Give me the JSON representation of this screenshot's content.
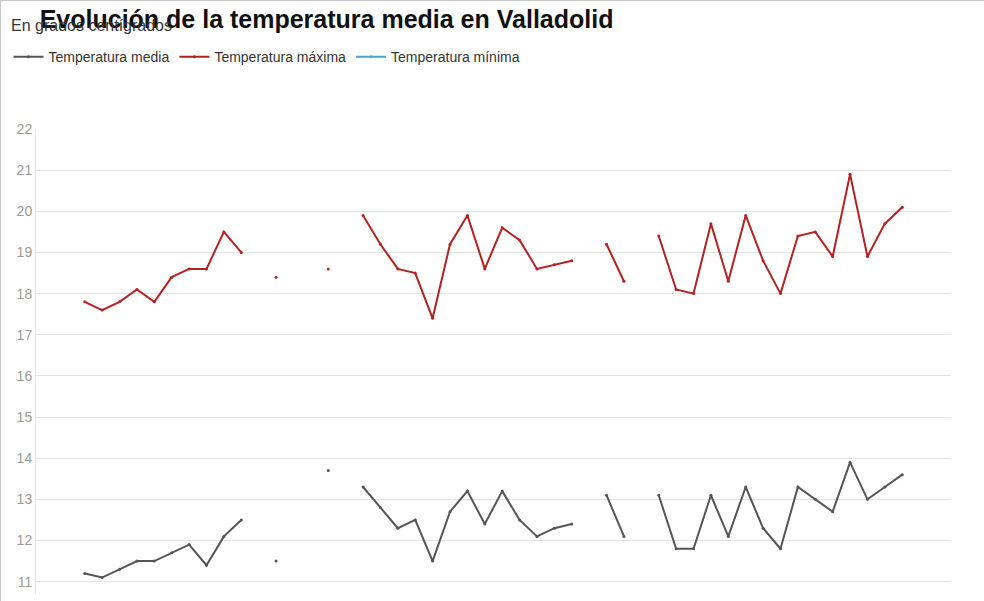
{
  "chart_data": {
    "type": "line",
    "title": "Evolución de la temperatura media en Valladolid",
    "subtitle": "En grados centígrados",
    "categories": [
      null,
      null,
      null,
      null,
      null,
      null,
      null,
      null,
      null,
      null,
      null,
      null,
      null,
      null,
      null,
      null,
      null,
      null,
      null,
      null,
      null,
      null,
      null,
      null,
      null,
      null,
      null,
      null,
      null,
      null,
      null,
      null,
      null,
      null,
      null,
      null,
      null,
      null,
      null,
      null,
      null,
      null,
      null,
      null,
      null,
      null,
      null,
      null
    ],
    "series": [
      {
        "name": "Temperatura media",
        "color": "#555555",
        "values": [
          11.2,
          11.1,
          11.3,
          11.5,
          11.5,
          11.7,
          11.9,
          11.4,
          12.1,
          12.5,
          null,
          11.5,
          null,
          null,
          13.7,
          null,
          13.3,
          12.8,
          12.3,
          12.5,
          11.5,
          12.7,
          13.2,
          12.4,
          13.2,
          12.5,
          12.1,
          12.3,
          12.4,
          null,
          13.1,
          12.1,
          null,
          13.1,
          11.8,
          11.8,
          13.1,
          12.1,
          13.3,
          12.3,
          11.8,
          13.3,
          13.0,
          12.7,
          13.9,
          13.0,
          13.3,
          13.6
        ]
      },
      {
        "name": "Temperatura máxima",
        "color": "#b22222",
        "values": [
          17.8,
          17.6,
          17.8,
          18.1,
          17.8,
          18.4,
          18.6,
          18.6,
          19.5,
          19.0,
          null,
          18.4,
          null,
          null,
          18.6,
          null,
          19.9,
          19.2,
          18.6,
          18.5,
          17.4,
          19.2,
          19.9,
          18.6,
          19.6,
          19.3,
          18.6,
          18.7,
          18.8,
          null,
          19.2,
          18.3,
          null,
          19.4,
          18.1,
          18.0,
          19.7,
          18.3,
          19.9,
          18.8,
          18.0,
          19.4,
          19.5,
          18.9,
          20.9,
          18.9,
          19.7,
          20.1
        ]
      },
      {
        "name": "Temperatura mínima",
        "color": "#4aa3c8",
        "values": [
          null,
          null,
          null,
          null,
          null,
          null,
          null,
          null,
          null,
          null,
          null,
          null,
          null,
          null,
          null,
          null,
          null,
          null,
          null,
          null,
          null,
          null,
          null,
          null,
          null,
          null,
          null,
          null,
          null,
          null,
          null,
          null,
          null,
          null,
          null,
          null,
          null,
          null,
          null,
          null,
          null,
          null,
          null,
          null,
          null,
          null,
          null,
          null
        ]
      }
    ],
    "ylim": [
      10.7,
      22
    ],
    "yticks": [
      11,
      12,
      13,
      14,
      15,
      16,
      17,
      18,
      19,
      20,
      21,
      22
    ],
    "grid": true,
    "legend": "top-left",
    "tick_labels": "y"
  }
}
